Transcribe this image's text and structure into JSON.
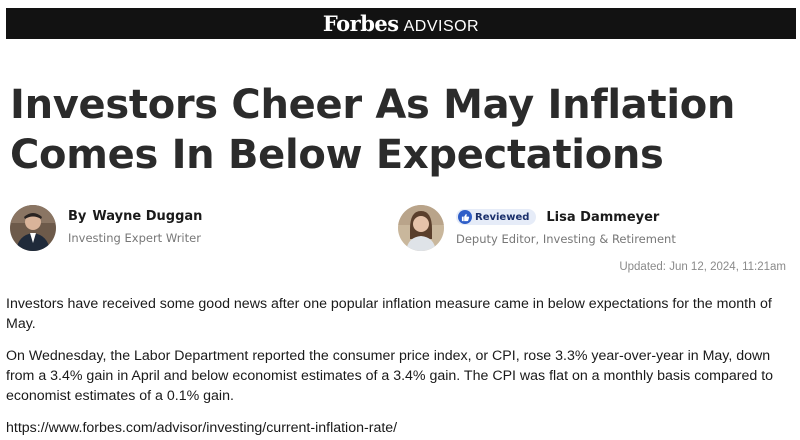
{
  "header": {
    "brand": "Forbes",
    "sub": "ADVISOR"
  },
  "article": {
    "headline_line1": "Investors Cheer As May Inflation",
    "headline_line2": "Comes In Below Expectations",
    "author": {
      "prefix": "By",
      "name": "Wayne Duggan",
      "title": "Investing Expert Writer"
    },
    "reviewer": {
      "badge": "Reviewed",
      "name": "Lisa Dammeyer",
      "title": "Deputy Editor, Investing & Retirement"
    },
    "updated": "Updated: Jun 12, 2024, 11:21am",
    "paragraph1": "Investors have received some good news after one popular inflation measure came in below expectations for the month of May.",
    "paragraph2": "On Wednesday, the Labor Department reported the consumer price index, or CPI, rose 3.3% year-over-year in May, down from a 3.4% gain in April and below economist estimates of a 3.4% gain. The CPI was flat on a monthly basis compared to economist estimates of a 0.1% gain.",
    "source_url": "https://www.forbes.com/advisor/investing/current-inflation-rate/"
  },
  "colors": {
    "topbar": "#121212",
    "headline": "#2b2b2b",
    "badge_bg": "#e6ecf8",
    "badge_icon": "#2f5ec8"
  }
}
